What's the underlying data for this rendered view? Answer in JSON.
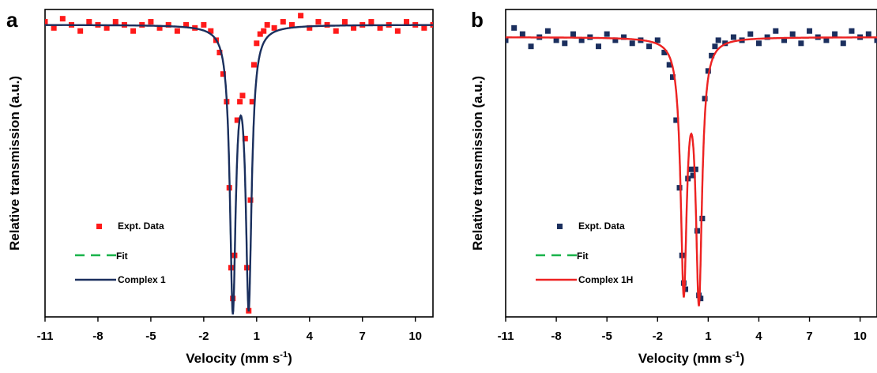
{
  "chart_data": [
    {
      "panel": "a",
      "type": "scatter",
      "xlabel": "Velocity (mm s",
      "xlabel_sup": "-1",
      "xlabel_close": ")",
      "ylabel": "Relative transmission (a.u.)",
      "xlim": [
        -11,
        11
      ],
      "ylim": [
        0,
        1
      ],
      "xticks": [
        -11,
        -8,
        -5,
        -2,
        1,
        4,
        7,
        10
      ],
      "grid": false,
      "legend_position": "bottom-left",
      "colors": {
        "data": "#ff1a1a",
        "fit": "#19b34a",
        "model": "#1b2f5e"
      },
      "legend": [
        "Expt. Data",
        "Fit",
        "Complex 1"
      ],
      "fit_model": {
        "baseline": 0.95,
        "lines": [
          {
            "center": -0.35,
            "depth": 0.9,
            "hwhm": 0.2
          },
          {
            "center": 0.55,
            "depth": 0.89,
            "hwhm": 0.2
          }
        ]
      },
      "series": [
        {
          "name": "Expt. Data",
          "mode": "markers",
          "x": [
            -11.0,
            -10.5,
            -10.0,
            -9.5,
            -9.0,
            -8.5,
            -8.0,
            -7.5,
            -7.0,
            -6.5,
            -6.0,
            -5.5,
            -5.0,
            -4.5,
            -4.0,
            -3.5,
            -3.0,
            -2.5,
            -2.0,
            -1.6,
            -1.3,
            -1.1,
            -0.9,
            -0.7,
            -0.55,
            -0.45,
            -0.35,
            -0.25,
            -0.1,
            0.05,
            0.2,
            0.35,
            0.45,
            0.55,
            0.65,
            0.75,
            0.85,
            1.0,
            1.2,
            1.4,
            1.6,
            2.0,
            2.5,
            3.0,
            3.5,
            4.0,
            4.5,
            5.0,
            5.5,
            6.0,
            6.5,
            7.0,
            7.5,
            8.0,
            8.5,
            9.0,
            9.5,
            10.0,
            10.5,
            11.0
          ],
          "y": [
            0.96,
            0.94,
            0.97,
            0.95,
            0.93,
            0.96,
            0.95,
            0.94,
            0.96,
            0.95,
            0.93,
            0.95,
            0.96,
            0.94,
            0.95,
            0.93,
            0.95,
            0.94,
            0.95,
            0.93,
            0.9,
            0.86,
            0.79,
            0.7,
            0.42,
            0.16,
            0.06,
            0.2,
            0.64,
            0.7,
            0.72,
            0.58,
            0.16,
            0.02,
            0.38,
            0.7,
            0.82,
            0.89,
            0.92,
            0.93,
            0.95,
            0.94,
            0.96,
            0.95,
            0.98,
            0.94,
            0.96,
            0.95,
            0.93,
            0.96,
            0.94,
            0.95,
            0.96,
            0.94,
            0.95,
            0.93,
            0.96,
            0.95,
            0.94,
            0.95
          ]
        },
        {
          "name": "Fit",
          "mode": "line",
          "dash": "8,6"
        },
        {
          "name": "Complex 1",
          "mode": "line"
        }
      ]
    },
    {
      "panel": "b",
      "type": "scatter",
      "xlabel": "Velocity (mm s",
      "xlabel_sup": "-1",
      "xlabel_close": ")",
      "ylabel": "Relative transmission (a.u.)",
      "xlim": [
        -11,
        11
      ],
      "ylim": [
        0,
        1
      ],
      "xticks": [
        -11,
        -8,
        -5,
        -2,
        1,
        4,
        7,
        10
      ],
      "grid": false,
      "legend_position": "bottom-left",
      "colors": {
        "data": "#1b2f5e",
        "fit": "#19b34a",
        "model": "#ee2222"
      },
      "legend": [
        "Expt. Data",
        "Fit",
        "Complex 1H"
      ],
      "fit_model": {
        "baseline": 0.91,
        "lines": [
          {
            "center": -0.45,
            "depth": 0.8,
            "hwhm": 0.22
          },
          {
            "center": 0.45,
            "depth": 0.83,
            "hwhm": 0.22
          }
        ]
      },
      "series": [
        {
          "name": "Expt. Data",
          "mode": "markers",
          "x": [
            -11.0,
            -10.5,
            -10.0,
            -9.5,
            -9.0,
            -8.5,
            -8.0,
            -7.5,
            -7.0,
            -6.5,
            -6.0,
            -5.5,
            -5.0,
            -4.5,
            -4.0,
            -3.5,
            -3.0,
            -2.5,
            -2.0,
            -1.6,
            -1.3,
            -1.1,
            -0.9,
            -0.7,
            -0.55,
            -0.45,
            -0.35,
            -0.2,
            -0.05,
            0.1,
            0.25,
            0.35,
            0.45,
            0.55,
            0.65,
            0.8,
            1.0,
            1.2,
            1.4,
            1.6,
            2.0,
            2.5,
            3.0,
            3.5,
            4.0,
            4.5,
            5.0,
            5.5,
            6.0,
            6.5,
            7.0,
            7.5,
            8.0,
            8.5,
            9.0,
            9.5,
            10.0,
            10.5,
            11.0
          ],
          "y": [
            0.9,
            0.94,
            0.92,
            0.88,
            0.91,
            0.93,
            0.9,
            0.89,
            0.92,
            0.9,
            0.91,
            0.88,
            0.92,
            0.9,
            0.91,
            0.89,
            0.9,
            0.88,
            0.9,
            0.86,
            0.82,
            0.78,
            0.64,
            0.42,
            0.2,
            0.11,
            0.09,
            0.45,
            0.48,
            0.46,
            0.48,
            0.28,
            0.07,
            0.06,
            0.32,
            0.71,
            0.8,
            0.85,
            0.88,
            0.9,
            0.89,
            0.91,
            0.9,
            0.92,
            0.89,
            0.91,
            0.93,
            0.9,
            0.92,
            0.89,
            0.93,
            0.91,
            0.9,
            0.92,
            0.89,
            0.93,
            0.91,
            0.92,
            0.9
          ]
        },
        {
          "name": "Fit",
          "mode": "line",
          "dash": "8,6"
        },
        {
          "name": "Complex 1H",
          "mode": "line"
        }
      ]
    }
  ]
}
